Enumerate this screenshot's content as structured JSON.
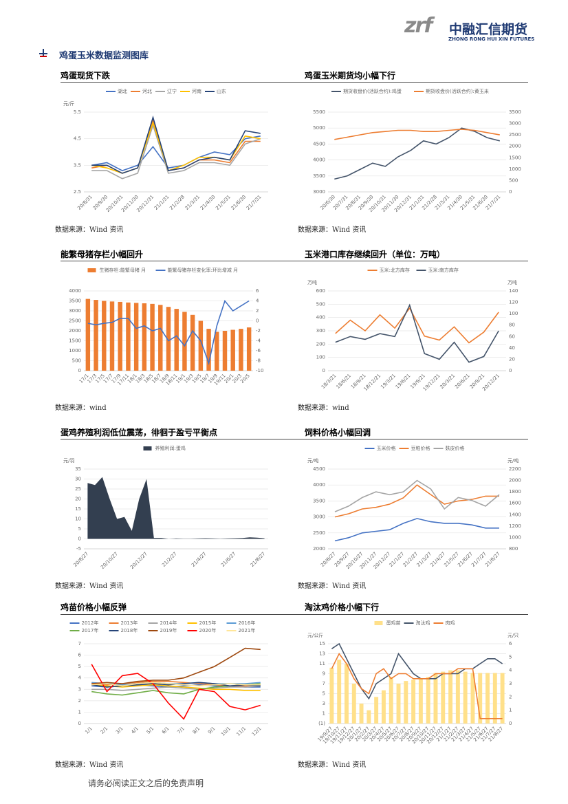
{
  "header": {
    "logo_mark": "zrf",
    "company": "中融汇信期货",
    "company_en": "ZHONG RONG HUI XIN FUTURES"
  },
  "section_title": "鸡蛋玉米数据监测图库",
  "charts": [
    {
      "title": "鸡蛋现货下跌",
      "type": "line",
      "y_unit": "元/斤",
      "grid": true,
      "categories": [
        "20/8/31",
        "20/9/30",
        "20/10/31",
        "20/11/30",
        "20/12/31",
        "21/1/31",
        "21/2/28",
        "21/3/31",
        "21/4/30",
        "21/5/31",
        "21/6/30",
        "21/7/31"
      ],
      "ylim": [
        2.5,
        5.5
      ],
      "yticks": [
        2.5,
        3.5,
        4.5,
        5.5
      ],
      "series": [
        {
          "name": "湖北",
          "color": "#4472c4",
          "values": [
            3.5,
            3.6,
            3.3,
            3.5,
            4.2,
            3.4,
            3.5,
            3.8,
            4.0,
            3.9,
            4.5,
            4.6
          ]
        },
        {
          "name": "河北",
          "color": "#ed7d31",
          "values": [
            3.4,
            3.5,
            3.2,
            3.4,
            5.2,
            3.3,
            3.4,
            3.7,
            3.7,
            3.6,
            4.4,
            4.4
          ]
        },
        {
          "name": "辽宁",
          "color": "#a5a5a5",
          "values": [
            3.3,
            3.3,
            3.0,
            3.2,
            5.0,
            3.2,
            3.3,
            3.6,
            3.6,
            3.5,
            4.3,
            4.5
          ]
        },
        {
          "name": "河南",
          "color": "#ffc000",
          "values": [
            3.5,
            3.4,
            3.2,
            3.4,
            5.1,
            3.3,
            3.5,
            3.8,
            3.8,
            3.7,
            4.6,
            4.5
          ]
        },
        {
          "name": "山东",
          "color": "#264478",
          "values": [
            3.5,
            3.5,
            3.2,
            3.4,
            5.3,
            3.3,
            3.4,
            3.7,
            3.8,
            3.7,
            4.8,
            4.7
          ]
        }
      ],
      "source": "数据来源：Wind 资讯"
    },
    {
      "title": "鸡蛋玉米期货均小幅下行",
      "type": "line",
      "grid": true,
      "categories": [
        "20/6/30",
        "20/7/31",
        "20/8/31",
        "20/9/30",
        "20/10/31",
        "20/11/30",
        "20/12/31",
        "21/1/31",
        "21/2/28",
        "21/3/31",
        "21/4/30",
        "21/5/31",
        "21/6/30",
        "21/7/31"
      ],
      "ylim": [
        3000,
        5500
      ],
      "yticks": [
        3000,
        3500,
        4000,
        4500,
        5000,
        5500
      ],
      "y2lim": [
        0,
        3500
      ],
      "y2ticks": [
        0,
        500,
        1000,
        1500,
        2000,
        2500,
        3000,
        3500
      ],
      "series": [
        {
          "name": "期货收盘价(活跃合约):鸡蛋",
          "color": "#44546a",
          "values": [
            3400,
            3500,
            3700,
            3900,
            3800,
            4100,
            4300,
            4600,
            4500,
            4700,
            5000,
            4900,
            4700,
            4600
          ]
        },
        {
          "name": "期货收盘价(活跃合约):黄玉米",
          "color": "#ed7d31",
          "axis": "y2",
          "values": [
            2300,
            2400,
            2500,
            2600,
            2650,
            2700,
            2700,
            2650,
            2650,
            2700,
            2750,
            2700,
            2600,
            2500
          ]
        }
      ],
      "source": "数据来源：Wind 资讯"
    },
    {
      "title": "能繁母猪存栏小幅回升",
      "type": "line",
      "grid": true,
      "categories": [
        "17/1",
        "17/3",
        "17/5",
        "17/7",
        "17/9",
        "17/11",
        "18/1",
        "18/3",
        "18/5",
        "18/7",
        "18/9",
        "18/11",
        "19/1",
        "19/3",
        "19/5",
        "19/7",
        "19/9",
        "19/11",
        "20/1",
        "20/3",
        "20/5"
      ],
      "ylim": [
        0,
        4000
      ],
      "yticks": [
        0,
        500,
        1000,
        1500,
        2000,
        2500,
        3000,
        3500,
        4000
      ],
      "y2lim": [
        -10,
        6
      ],
      "y2ticks": [
        -10,
        -8,
        -6,
        -4,
        -2,
        0,
        2,
        4,
        6
      ],
      "series": [
        {
          "name": "生猪存栏:能繁母猪 月",
          "type": "bar",
          "color": "#ed7d31",
          "values": [
            3600,
            3550,
            3500,
            3470,
            3450,
            3420,
            3400,
            3380,
            3350,
            3300,
            3200,
            3100,
            2950,
            2800,
            2500,
            2100,
            1950,
            2000,
            2050,
            2100,
            2170
          ]
        },
        {
          "name": "能繁母猪存栏变化率:环比增减 月",
          "color": "#4472c4",
          "axis": "y2",
          "values": [
            -0.5,
            -0.8,
            -0.5,
            -0.3,
            0.5,
            0.5,
            -1.5,
            -1,
            -2,
            -1.5,
            -4,
            -3,
            -5,
            -2,
            -4,
            -8.5,
            -1,
            4,
            2,
            3,
            4
          ]
        }
      ],
      "source": "数据来源：wind"
    },
    {
      "title": "玉米港口库存继续回升（单位：万吨）",
      "type": "line",
      "grid": true,
      "y_unit": "万吨",
      "y2_unit": "万吨",
      "categories": [
        "18/3/21",
        "18/6/21",
        "18/9/21",
        "18/12/21",
        "19/3/21",
        "19/6/21",
        "19/9/21",
        "19/12/21",
        "20/3/21",
        "20/6/21",
        "20/9/21",
        "20/12/21"
      ],
      "ylim": [
        0,
        600
      ],
      "yticks": [
        0,
        100,
        200,
        300,
        400,
        500,
        600
      ],
      "y2lim": [
        0,
        140
      ],
      "y2ticks": [
        0,
        20,
        40,
        60,
        80,
        100,
        120,
        140
      ],
      "series": [
        {
          "name": "玉米:北方库存",
          "color": "#ed7d31",
          "values": [
            280,
            380,
            300,
            420,
            320,
            470,
            260,
            230,
            330,
            210,
            290,
            440
          ]
        },
        {
          "name": "玉米:南方库存",
          "color": "#44546a",
          "axis": "y2",
          "values": [
            50,
            60,
            55,
            65,
            60,
            115,
            30,
            20,
            50,
            15,
            25,
            70
          ]
        }
      ],
      "source": "数据来源：wind"
    },
    {
      "title": "蛋鸡养殖利润低位震荡，徘徊于盈亏平衡点",
      "type": "area",
      "grid": true,
      "y_unit": "元/羽",
      "categories": [
        "20/8/27",
        null,
        null,
        null,
        "20/10/27",
        null,
        null,
        null,
        "20/12/27",
        null,
        null,
        null,
        "21/2/27",
        null,
        null,
        null,
        "21/4/27",
        null,
        null,
        null,
        "21/6/27",
        null,
        null,
        null,
        "21/8/27"
      ],
      "ylim": [
        -5,
        35
      ],
      "yticks": [
        -5,
        0,
        5,
        10,
        15,
        20,
        25,
        30,
        35
      ],
      "series": [
        {
          "name": "养殖利润:蛋鸡",
          "color": "#333f50",
          "values": [
            28,
            27,
            31,
            20,
            10,
            11,
            4,
            20,
            30,
            0.5,
            0.5,
            0,
            0.2,
            0.1,
            0.1,
            0.2,
            0.3,
            0.2,
            0.1,
            0.2,
            0.3,
            0.4,
            0.8,
            0.6,
            0.3
          ]
        }
      ],
      "source": "数据来源：Wind 资讯"
    },
    {
      "title": "饲料价格小幅回调",
      "type": "line",
      "grid": true,
      "y_unit": "元/吨",
      "y2_unit": "元/吨",
      "categories": [
        "20/8/27",
        "20/9/27",
        "20/10/27",
        "20/11/27",
        "20/12/27",
        "21/1/27",
        "21/2/27",
        "21/3/27",
        "21/4/27",
        "21/5/27",
        "21/6/27",
        "21/7/27",
        "21/8/27"
      ],
      "ylim": [
        2000,
        4500
      ],
      "yticks": [
        2000,
        2500,
        3000,
        3500,
        4000,
        4500
      ],
      "y2lim": [
        800,
        2200
      ],
      "y2ticks": [
        800,
        1000,
        1200,
        1400,
        1600,
        1800,
        2000,
        2200
      ],
      "series": [
        {
          "name": "玉米价格",
          "color": "#4472c4",
          "values": [
            2250,
            2350,
            2500,
            2550,
            2600,
            2800,
            2950,
            2850,
            2800,
            2800,
            2750,
            2650,
            2650
          ]
        },
        {
          "name": "豆粕价格",
          "color": "#ed7d31",
          "values": [
            3000,
            3100,
            3250,
            3300,
            3400,
            3600,
            4000,
            3700,
            3400,
            3500,
            3550,
            3650,
            3650
          ]
        },
        {
          "name": "麸皮价格",
          "color": "#a5a5a5",
          "axis": "y2",
          "values": [
            1450,
            1550,
            1700,
            1800,
            1750,
            1800,
            2000,
            1850,
            1500,
            1700,
            1650,
            1550,
            1750
          ]
        }
      ],
      "source": "数据来源：Wind 资讯"
    },
    {
      "title": "鸡苗价格小幅反弹",
      "type": "line",
      "grid": true,
      "categories": [
        "1/1",
        "2/1",
        "3/1",
        "4/1",
        "5/1",
        "6/1",
        "7/1",
        "8/1",
        "9/1",
        "10/1",
        "11/1",
        "12/1"
      ],
      "ylim": [
        0,
        7
      ],
      "yticks": [
        0,
        1,
        2,
        3,
        4,
        5,
        6,
        7
      ],
      "series": [
        {
          "name": "2012年",
          "color": "#4472c4",
          "values": [
            3.3,
            3.2,
            3.3,
            3.4,
            3.3,
            3.2,
            3.3,
            3.4,
            3.3,
            3.3,
            3.2,
            3.2
          ]
        },
        {
          "name": "2013年",
          "color": "#ed7d31",
          "values": [
            3.5,
            3.4,
            3.5,
            3.6,
            3.7,
            3.7,
            3.6,
            3.5,
            3.4,
            3.3,
            3.3,
            3.4
          ]
        },
        {
          "name": "2014年",
          "color": "#a5a5a5",
          "values": [
            3.0,
            3.0,
            2.9,
            3.0,
            3.1,
            3.2,
            3.1,
            3.0,
            3.1,
            3.2,
            3.2,
            3.3
          ]
        },
        {
          "name": "2015年",
          "color": "#ffc000",
          "values": [
            3.4,
            3.3,
            3.2,
            3.3,
            3.4,
            3.3,
            3.2,
            3.1,
            3.0,
            3.0,
            2.9,
            2.9
          ]
        },
        {
          "name": "2016年",
          "color": "#5b9bd5",
          "values": [
            3.6,
            3.5,
            3.4,
            3.5,
            3.6,
            3.5,
            3.5,
            3.6,
            3.5,
            3.5,
            3.5,
            3.6
          ]
        },
        {
          "name": "2017年",
          "color": "#70ad47",
          "values": [
            2.8,
            2.6,
            2.5,
            2.7,
            2.9,
            2.7,
            2.6,
            3.0,
            3.2,
            3.3,
            3.4,
            3.5
          ]
        },
        {
          "name": "2018年",
          "color": "#264478",
          "values": [
            3.4,
            3.2,
            3.3,
            3.4,
            3.5,
            3.4,
            3.5,
            3.6,
            3.5,
            3.3,
            3.4,
            3.3
          ]
        },
        {
          "name": "2019年",
          "color": "#9e480e",
          "values": [
            3.5,
            3.6,
            3.5,
            3.7,
            3.8,
            3.8,
            4.0,
            4.5,
            5.0,
            5.8,
            6.6,
            6.5
          ]
        },
        {
          "name": "2020年",
          "color": "#ff0000",
          "values": [
            5.2,
            2.8,
            4.2,
            4.4,
            3.5,
            1.8,
            0.4,
            3.0,
            2.8,
            1.5,
            1.2,
            1.6
          ]
        },
        {
          "name": "2021年",
          "color": "#ffe699",
          "values": [
            3.4,
            3.5,
            3.3,
            3.5,
            3.6,
            3.5,
            3.4,
            3.3,
            3.4,
            3.5,
            3.4,
            3.4
          ]
        }
      ],
      "source": "数据来源：Wind 资讯"
    },
    {
      "title": "淘汰鸡价格小幅下行",
      "type": "line",
      "grid": true,
      "y_unit": "元/公斤",
      "y2_unit": "元/只",
      "categories": [
        "19/9/27",
        "19/10/27",
        "19/11/27",
        "19/12/27",
        "20/1/27",
        "20/2/27",
        "20/3/27",
        "20/4/27",
        "20/5/27",
        "20/6/27",
        "20/7/27",
        "20/8/27",
        "20/9/27",
        "20/10/27",
        "20/11/27",
        "20/12/27",
        "21/1/27",
        "21/2/27",
        "21/3/27",
        "21/4/27",
        "21/5/27",
        "21/6/27",
        "21/7/27",
        "21/8/27"
      ],
      "ylim": [
        -1,
        15
      ],
      "yticks": [
        {
          "value": -1,
          "label": "(1)"
        },
        1,
        3,
        5,
        7,
        9,
        11,
        13,
        15
      ],
      "y2lim": [
        0,
        6
      ],
      "y2ticks": [
        0,
        1,
        2,
        3,
        4,
        5,
        6
      ],
      "series": [
        {
          "name": "蛋鸡苗",
          "type": "bar",
          "color": "#ffe08a",
          "axis": "y2",
          "values": [
            4.2,
            4.8,
            4.5,
            3.0,
            1.5,
            1.0,
            2.0,
            2.5,
            3.5,
            3.0,
            3.2,
            3.3,
            3.4,
            3.5,
            3.8,
            3.9,
            4.0,
            4.0,
            3.9,
            3.8,
            3.8,
            3.8,
            3.8,
            3.8
          ]
        },
        {
          "name": "淘汰鸡",
          "color": "#44546a",
          "values": [
            14,
            15,
            12,
            9,
            6,
            4,
            7,
            8,
            9,
            13,
            11,
            9,
            8,
            8,
            8,
            9,
            9,
            9,
            10,
            10,
            11,
            12,
            12,
            11
          ]
        },
        {
          "name": "肉鸡",
          "color": "#ed7d31",
          "values": [
            10,
            13,
            11,
            8,
            6,
            5,
            9,
            10,
            8,
            9,
            9,
            8,
            8,
            8,
            9,
            9,
            9,
            10,
            10,
            10,
            0,
            0,
            0,
            0
          ]
        }
      ],
      "source": "数据来源：Wind 资讯"
    }
  ],
  "footer": "请务必阅读正文之后的免责声明"
}
